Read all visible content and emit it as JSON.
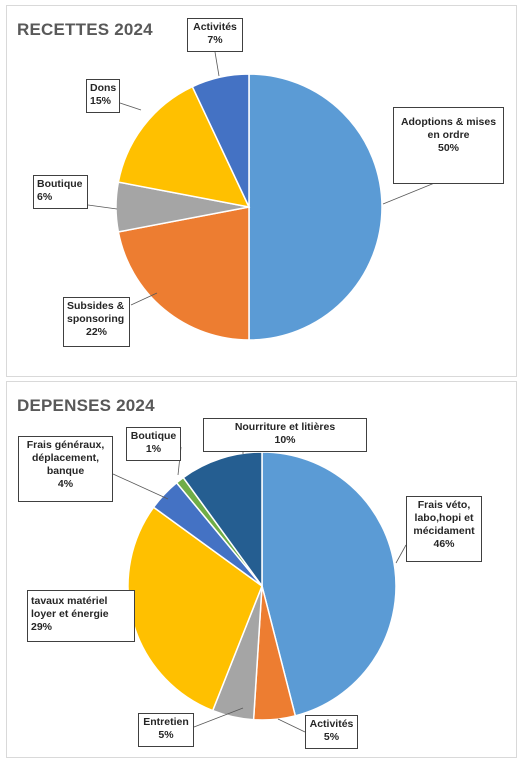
{
  "chart_data": [
    {
      "type": "pie",
      "title": "RECETTES 2024",
      "slices": [
        {
          "label": "Adoptions & mises en ordre",
          "value": 50,
          "value_label": "50%",
          "color": "#5B9BD5"
        },
        {
          "label": "Subsides & sponsoring",
          "value": 22,
          "value_label": "22%",
          "color": "#ED7D31"
        },
        {
          "label": "Boutique",
          "value": 6,
          "value_label": "6%",
          "color": "#A5A5A5"
        },
        {
          "label": "Dons",
          "value": 15,
          "value_label": "15%",
          "color": "#FFC000"
        },
        {
          "label": "Activités",
          "value": 7,
          "value_label": "7%",
          "color": "#4472C4"
        }
      ]
    },
    {
      "type": "pie",
      "title": "DEPENSES 2024",
      "slices": [
        {
          "label": "Frais véto, labo,hopi et mécidament",
          "value": 46,
          "value_label": "46%",
          "color": "#5B9BD5"
        },
        {
          "label": "Activités",
          "value": 5,
          "value_label": "5%",
          "color": "#ED7D31"
        },
        {
          "label": "Entretien",
          "value": 5,
          "value_label": "5%",
          "color": "#A5A5A5"
        },
        {
          "label": "tavaux matériel loyer et énergie",
          "value": 29,
          "value_label": "29%",
          "color": "#FFC000"
        },
        {
          "label": "Frais généraux, déplacement, banque",
          "value": 4,
          "value_label": "4%",
          "color": "#4472C4"
        },
        {
          "label": "Boutique",
          "value": 1,
          "value_label": "1%",
          "color": "#70AD47"
        },
        {
          "label": "Nourriture et litières",
          "value": 10,
          "value_label": "10%",
          "color": "#255E91"
        }
      ]
    }
  ]
}
